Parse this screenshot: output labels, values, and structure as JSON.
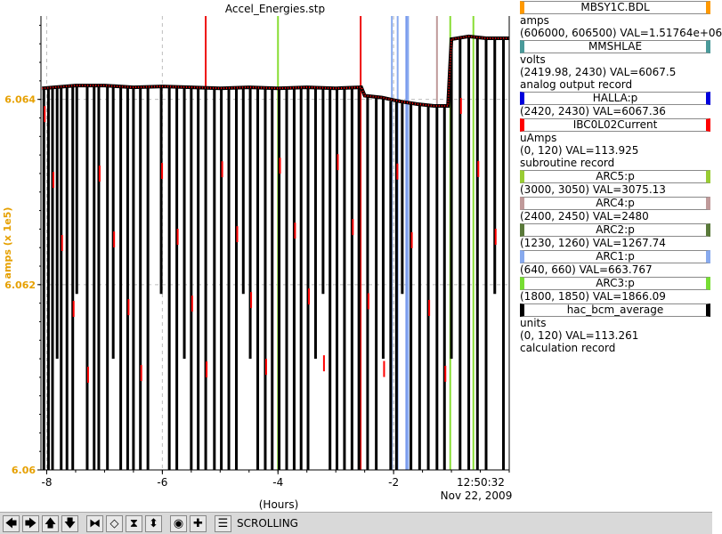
{
  "chart_data": {
    "type": "line",
    "title": "Accel_Energies.stp",
    "ylabel": "amps (x 1e5)",
    "xlabel": "(Hours)",
    "time_label": "12:50:32",
    "date_label": "Nov 22, 2009",
    "x_ticks": [
      -8,
      -6,
      -4,
      -2
    ],
    "x_tick_labels": [
      "-8",
      "-6",
      "-4",
      "-2"
    ],
    "x_range": [
      -8.1,
      0.0
    ],
    "y_ticks": [
      6.06,
      6.062,
      6.064
    ],
    "y_tick_labels": [
      "6.06",
      "6.062",
      "6.064"
    ],
    "y_range": [
      6.06,
      6.0649
    ],
    "grid": "dashed",
    "legend_placement": "right",
    "series": [
      {
        "name": "MBSY1C.BDL",
        "color": "#ff9900"
      },
      {
        "name": "MMSHLAE",
        "color": "#4a9a9a"
      },
      {
        "name": "HALLA:p",
        "color": "#0000dd"
      },
      {
        "name": "IBC0L02Current",
        "color": "#ff0000"
      },
      {
        "name": "ARC5:p",
        "color": "#99cc33"
      },
      {
        "name": "ARC4:p",
        "color": "#c09a9a"
      },
      {
        "name": "ARC2:p",
        "color": "#5a7a3a"
      },
      {
        "name": "ARC1:p",
        "color": "#88aaee"
      },
      {
        "name": "ARC3:p",
        "color": "#77dd33"
      },
      {
        "name": "hac_bcm_average",
        "color": "#000000"
      }
    ],
    "main_trace": [
      [
        -8.08,
        6.06412
      ],
      [
        -7.5,
        6.06415
      ],
      [
        -7.0,
        6.06415
      ],
      [
        -6.5,
        6.06413
      ],
      [
        -6.0,
        6.06414
      ],
      [
        -5.5,
        6.06413
      ],
      [
        -5.0,
        6.06412
      ],
      [
        -4.5,
        6.06413
      ],
      [
        -4.0,
        6.06412
      ],
      [
        -3.5,
        6.06413
      ],
      [
        -3.0,
        6.06412
      ],
      [
        -2.56,
        6.06413
      ],
      [
        -2.5,
        6.06404
      ],
      [
        -2.2,
        6.06402
      ],
      [
        -1.9,
        6.06398
      ],
      [
        -1.6,
        6.06395
      ],
      [
        -1.3,
        6.06393
      ],
      [
        -1.06,
        6.06393
      ],
      [
        -1.0,
        6.06465
      ],
      [
        -0.7,
        6.06468
      ],
      [
        -0.4,
        6.06466
      ],
      [
        0.0,
        6.06466
      ]
    ],
    "spike_times": [
      -8.05,
      -7.97,
      -7.9,
      -7.82,
      -7.75,
      -7.65,
      -7.55,
      -7.48,
      -7.3,
      -7.18,
      -7.1,
      -6.95,
      -6.85,
      -6.72,
      -6.6,
      -6.5,
      -6.38,
      -6.25,
      -6.02,
      -5.88,
      -5.75,
      -5.62,
      -5.5,
      -5.38,
      -5.25,
      -5.1,
      -4.98,
      -4.85,
      -4.72,
      -4.6,
      -4.48,
      -4.35,
      -4.22,
      -4.1,
      -3.98,
      -3.85,
      -3.72,
      -3.6,
      -3.48,
      -3.35,
      -3.22,
      -3.1,
      -2.98,
      -2.85,
      -2.72,
      -2.6,
      -2.45,
      -2.3,
      -2.18,
      -2.05,
      -1.95,
      -1.85,
      -1.7,
      -1.55,
      -1.4,
      -1.25,
      -1.12,
      -1.0,
      -0.85,
      -0.7,
      -0.55,
      -0.4,
      -0.25,
      -0.1
    ],
    "markers": [
      {
        "x": -5.25,
        "color": "#ee1111"
      },
      {
        "x": -4.0,
        "color": "#88dd33"
      },
      {
        "x": -2.57,
        "color": "#ee1111"
      },
      {
        "x": -2.03,
        "color": "#88aaee"
      },
      {
        "x": -1.93,
        "color": "#88aaee"
      },
      {
        "x": -1.75,
        "color": "#88aaee"
      },
      {
        "x": -1.78,
        "color": "#7799ee"
      },
      {
        "x": -1.25,
        "color": "#c09a9a"
      },
      {
        "x": -1.02,
        "color": "#88dd33"
      },
      {
        "x": -0.62,
        "color": "#88dd33"
      }
    ]
  },
  "legend": [
    {
      "name": "MBSY1C.BDL",
      "color": "#ff9900",
      "lines": [
        "amps",
        "(606000, 606500)  VAL=1.51764e+06"
      ]
    },
    {
      "name": "MMSHLAE",
      "color": "#4a9a9a",
      "lines": [
        "volts",
        "(2419.98, 2430)  VAL=6067.5",
        "analog output record"
      ]
    },
    {
      "name": "HALLA:p",
      "color": "#0000dd",
      "lines": [
        "(2420, 2430)  VAL=6067.36"
      ]
    },
    {
      "name": "IBC0L02Current",
      "color": "#ff0000",
      "lines": [
        "uAmps",
        "(0, 120)  VAL=113.925",
        "subroutine record"
      ]
    },
    {
      "name": "ARC5:p",
      "color": "#99cc33",
      "lines": [
        "(3000, 3050)  VAL=3075.13"
      ]
    },
    {
      "name": "ARC4:p",
      "color": "#c09a9a",
      "lines": [
        "(2400, 2450)  VAL=2480"
      ]
    },
    {
      "name": "ARC2:p",
      "color": "#5a7a3a",
      "lines": [
        "(1230, 1260)  VAL=1267.74"
      ]
    },
    {
      "name": "ARC1:p",
      "color": "#88aaee",
      "lines": [
        "(640, 660)  VAL=663.767"
      ]
    },
    {
      "name": "ARC3:p",
      "color": "#77dd33",
      "lines": [
        "(1800, 1850)  VAL=1866.09"
      ]
    },
    {
      "name": "hac_bcm_average",
      "color": "#000000",
      "lines": [
        "units",
        "(0, 120)  VAL=113.261",
        "calculation record"
      ]
    }
  ],
  "toolbar": {
    "buttons": [
      {
        "name": "pan-left-button",
        "icon": "arrow-left-icon",
        "glyph": "🡄"
      },
      {
        "name": "pan-right-button",
        "icon": "arrow-right-icon",
        "glyph": "🡆"
      },
      {
        "name": "pan-up-button",
        "icon": "arrow-up-icon",
        "glyph": "🡅"
      },
      {
        "name": "pan-down-button",
        "icon": "arrow-down-icon",
        "glyph": "🡇"
      },
      {
        "name": "zoom-in-x-button",
        "icon": "zoom-in-x-icon",
        "glyph": "⧓"
      },
      {
        "name": "zoom-out-x-button",
        "icon": "zoom-out-x-icon",
        "glyph": "◇"
      },
      {
        "name": "zoom-in-y-button",
        "icon": "zoom-in-y-icon",
        "glyph": "⧗"
      },
      {
        "name": "zoom-out-y-button",
        "icon": "zoom-out-y-icon",
        "glyph": "⬍"
      },
      {
        "name": "auto-scale-button",
        "icon": "record-icon",
        "glyph": "◉"
      },
      {
        "name": "add-button",
        "icon": "plus-icon",
        "glyph": "✚"
      },
      {
        "name": "config-button",
        "icon": "config-icon",
        "glyph": "☰"
      }
    ],
    "status": "SCROLLING"
  }
}
